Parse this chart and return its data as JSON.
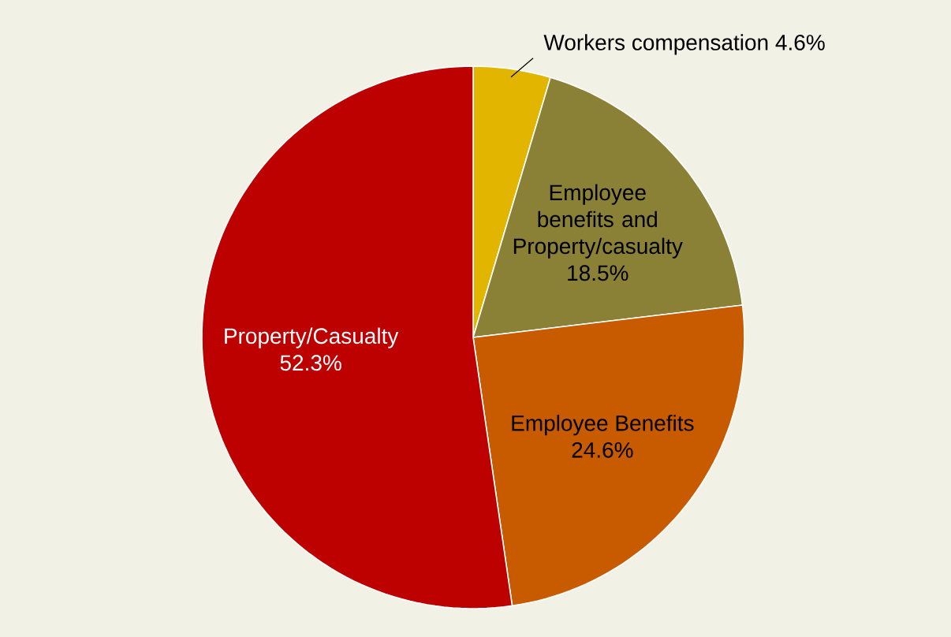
{
  "chart_data": {
    "type": "pie",
    "categories": [
      "Workers compensation",
      "Employee benefits and Property/casualty",
      "Employee Benefits",
      "Property/Casualty"
    ],
    "values": [
      4.6,
      18.5,
      24.6,
      52.3
    ],
    "value_labels": [
      "4.6%",
      "18.5%",
      "24.6%",
      "52.3%"
    ],
    "colors": [
      "#e2b600",
      "#8a8036",
      "#c85a00",
      "#bd0000"
    ]
  }
}
